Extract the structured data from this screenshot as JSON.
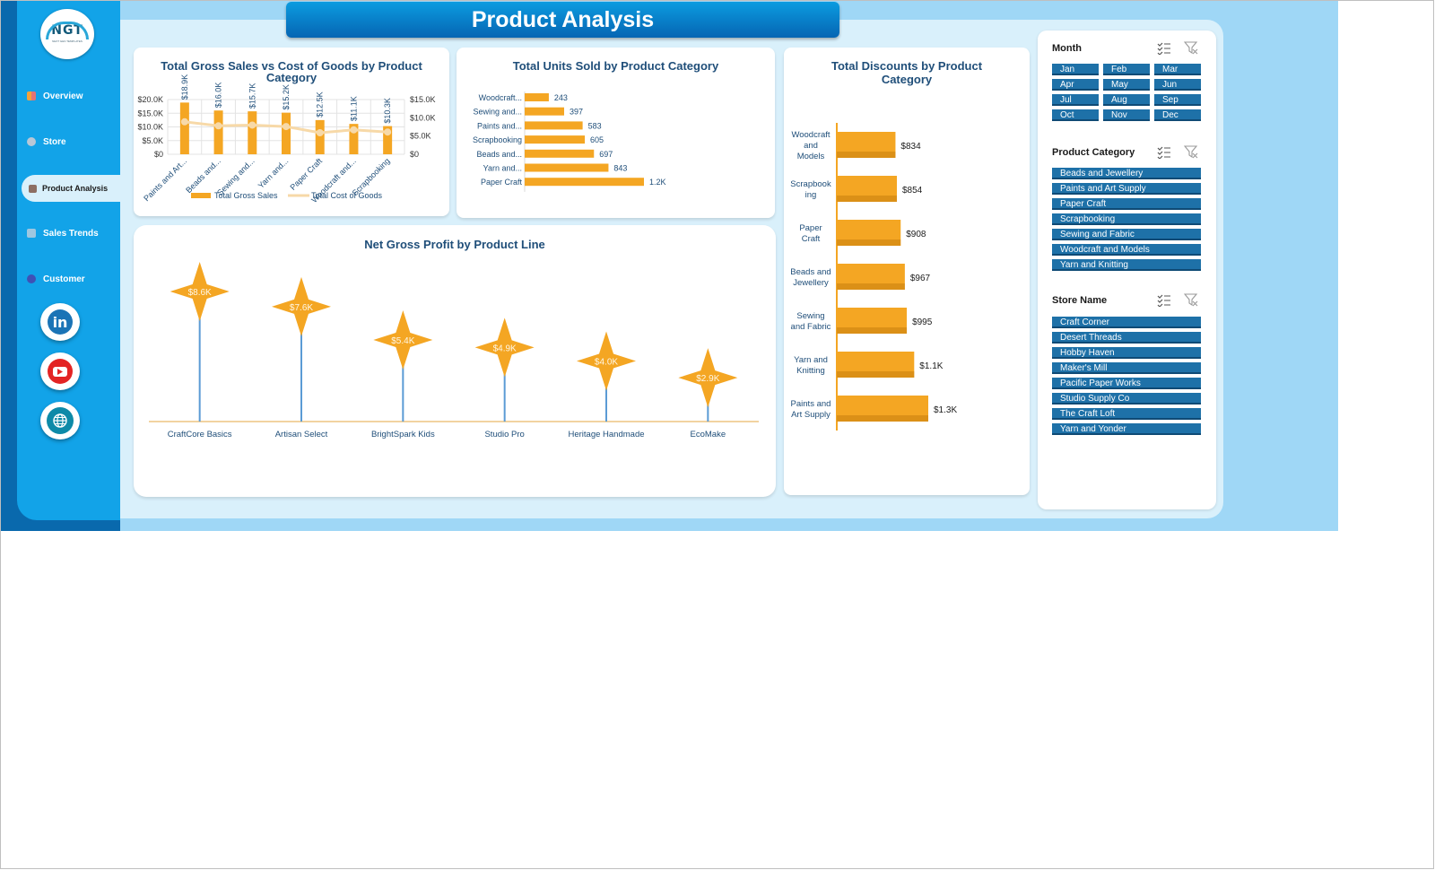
{
  "page": {
    "title": "Product Analysis"
  },
  "logo": {
    "text": "NGT",
    "subtitle": "NEXT GEN TEMPLATES"
  },
  "sidebar": {
    "items": [
      {
        "label": "Overview",
        "icon": "bar-chart-icon",
        "color": "#f4a23a"
      },
      {
        "label": "Store",
        "icon": "gear-icon",
        "color": "#b8c7d6"
      },
      {
        "label": "Product Analysis",
        "icon": "box-icon",
        "color": "#8d6e63",
        "active": true
      },
      {
        "label": "Sales Trends",
        "icon": "trend-chart-icon",
        "color": "#9ec7e0"
      },
      {
        "label": "Customer",
        "icon": "people-icon",
        "color": "#3f51b5"
      }
    ],
    "social": [
      {
        "name": "linkedin-icon",
        "text": "in"
      },
      {
        "name": "youtube-icon"
      },
      {
        "name": "globe-icon"
      }
    ]
  },
  "charts": {
    "gross_sales": {
      "title": "Total Gross Sales vs Cost of Goods by Product Category",
      "type": "bar+line",
      "categories": [
        "Paints and Art...",
        "Beads and...",
        "Sewing and...",
        "Yarn and...",
        "Paper Craft",
        "Woodcraft and...",
        "Scrapbooking"
      ],
      "left_axis_ticks": [
        "$20.0K",
        "$15.0K",
        "$10.0K",
        "$5.0K",
        "$0"
      ],
      "right_axis_ticks": [
        "$15.0K",
        "$10.0K",
        "$5.0K",
        "$0"
      ],
      "series": [
        {
          "name": "Total Gross Sales",
          "values": [
            18.9,
            16.0,
            15.7,
            15.2,
            12.5,
            11.1,
            10.3
          ],
          "labels": [
            "$18.9K",
            "$16.0K",
            "$15.7K",
            "$15.2K",
            "$12.5K",
            "$11.1K",
            "$10.3K"
          ],
          "color": "#f4a623"
        },
        {
          "name": "Total Cost of Goods",
          "values": [
            8.9,
            7.8,
            8.0,
            7.6,
            5.9,
            6.7,
            6.1
          ],
          "color": "#f7d9a8"
        }
      ],
      "ylim_left": [
        0,
        20
      ],
      "ylim_right": [
        0,
        15
      ]
    },
    "units_sold": {
      "title": "Total Units Sold by Product Category",
      "type": "bar",
      "categories": [
        "Woodcraft...",
        "Sewing and...",
        "Paints and...",
        "Scrapbooking",
        "Beads and...",
        "Yarn and...",
        "Paper Craft"
      ],
      "values": [
        243,
        397,
        583,
        605,
        697,
        843,
        1200
      ],
      "labels": [
        "243",
        "397",
        "583",
        "605",
        "697",
        "843",
        "1.2K"
      ],
      "color": "#f4a623"
    },
    "discounts": {
      "title": "Total Discounts by Product Category",
      "type": "bar",
      "categories": [
        [
          "Woodcraft",
          "and",
          "Models"
        ],
        [
          "Scrapbook",
          "ing"
        ],
        [
          "Paper",
          "Craft"
        ],
        [
          "Beads and",
          "Jewellery"
        ],
        [
          "Sewing",
          "and Fabric"
        ],
        [
          "Yarn and",
          "Knitting"
        ],
        [
          "Paints and",
          "Art Supply"
        ]
      ],
      "values": [
        834,
        854,
        908,
        967,
        995,
        1100,
        1300
      ],
      "labels": [
        "$834",
        "$854",
        "$908",
        "$967",
        "$995",
        "$1.1K",
        "$1.3K"
      ],
      "color": "#f4a623"
    },
    "net_profit": {
      "title": "Net Gross Profit by Product Line",
      "type": "lollipop",
      "categories": [
        "CraftCore Basics",
        "Artisan Select",
        "BrightSpark Kids",
        "Studio Pro",
        "Heritage Handmade",
        "EcoMake"
      ],
      "values": [
        8.6,
        7.6,
        5.4,
        4.9,
        4.0,
        2.9
      ],
      "labels": [
        "$8.6K",
        "$7.6K",
        "$5.4K",
        "$4.9K",
        "$4.0K",
        "$2.9K"
      ],
      "color": "#f4a623"
    }
  },
  "slicers": {
    "month": {
      "title": "Month",
      "items": [
        "Jan",
        "Feb",
        "Mar",
        "Apr",
        "May",
        "Jun",
        "Jul",
        "Aug",
        "Sep",
        "Oct",
        "Nov",
        "Dec"
      ]
    },
    "product_category": {
      "title": "Product Category",
      "items": [
        "Beads and Jewellery",
        "Paints and Art Supply",
        "Paper Craft",
        "Scrapbooking",
        "Sewing and Fabric",
        "Woodcraft and Models",
        "Yarn and Knitting"
      ]
    },
    "store_name": {
      "title": "Store Name",
      "items": [
        "Craft Corner",
        "Desert Threads",
        "Hobby Haven",
        "Maker's Mill",
        "Pacific Paper Works",
        "Studio Supply Co",
        "The Craft Loft",
        "Yarn and Yonder"
      ]
    }
  }
}
